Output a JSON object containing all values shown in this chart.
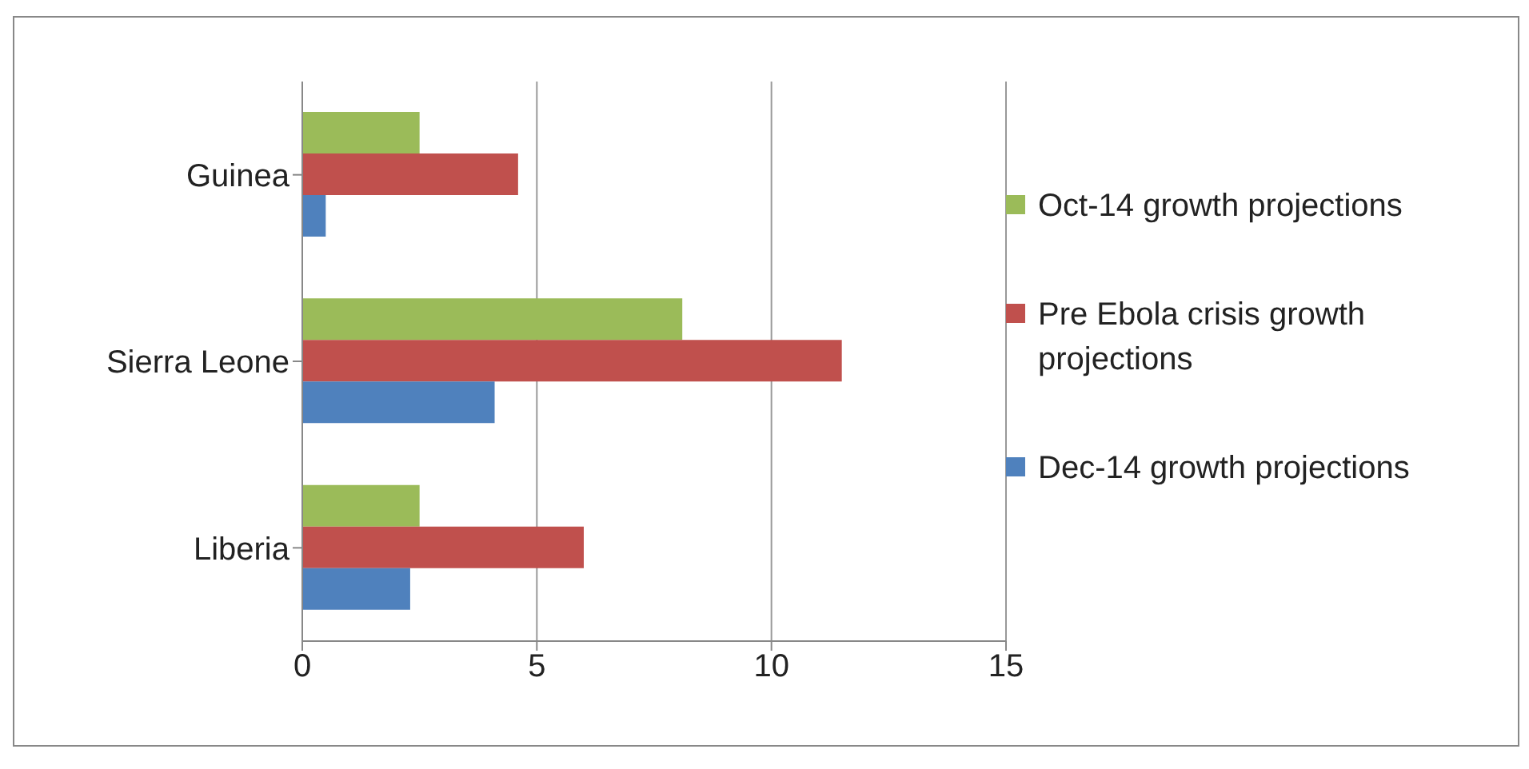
{
  "chart_data": {
    "type": "bar",
    "orientation": "horizontal",
    "categories": [
      "Guinea",
      "Sierra Leone",
      "Liberia"
    ],
    "series": [
      {
        "name": "Oct-14 growth projections",
        "color": "#9bbb59",
        "values": [
          2.5,
          8.1,
          2.5
        ]
      },
      {
        "name": "Pre Ebola crisis growth projections",
        "color": "#c0504d",
        "values": [
          4.6,
          11.5,
          6.0
        ]
      },
      {
        "name": "Dec-14 growth projections",
        "color": "#4f81bd",
        "values": [
          0.5,
          4.1,
          2.3
        ]
      }
    ],
    "xlim": [
      0,
      15
    ],
    "xticks": [
      0,
      5,
      10,
      15
    ],
    "grid": "x",
    "legend": "right"
  }
}
